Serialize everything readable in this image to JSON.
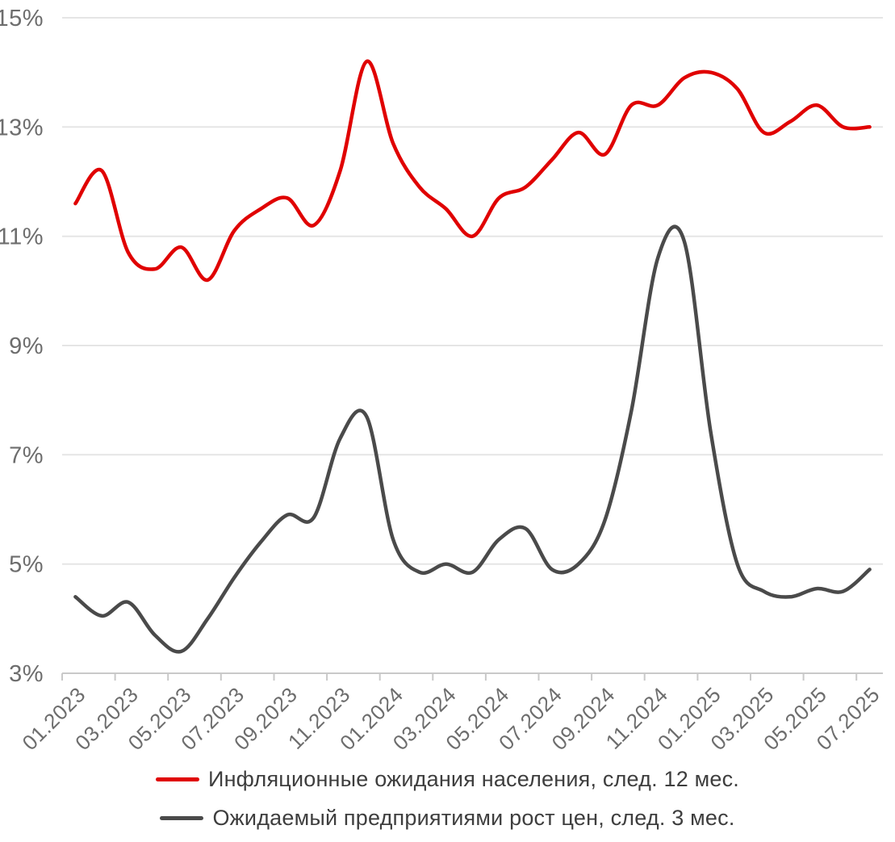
{
  "chart_data": {
    "type": "line",
    "smooth": true,
    "grid": true,
    "legend_position": "bottom",
    "title": "",
    "xlabel": "",
    "ylabel": "",
    "ylim": [
      3,
      15
    ],
    "y_ticks": [
      3,
      5,
      7,
      9,
      11,
      13,
      15
    ],
    "y_tick_labels": [
      "3%",
      "5%",
      "7%",
      "9%",
      "11%",
      "13%",
      "15%"
    ],
    "x_tick_every": 2,
    "x_tick_labels": [
      "01.2023",
      "03.2023",
      "05.2023",
      "07.2023",
      "09.2023",
      "11.2023",
      "01.2024",
      "03.2024",
      "05.2024",
      "07.2024",
      "09.2024",
      "11.2024",
      "01.2025",
      "03.2025",
      "05.2025",
      "07.2025"
    ],
    "categories": [
      "01.2023",
      "02.2023",
      "03.2023",
      "04.2023",
      "05.2023",
      "06.2023",
      "07.2023",
      "08.2023",
      "09.2023",
      "10.2023",
      "11.2023",
      "12.2023",
      "01.2024",
      "02.2024",
      "03.2024",
      "04.2024",
      "05.2024",
      "06.2024",
      "07.2024",
      "08.2024",
      "09.2024",
      "10.2024",
      "11.2024",
      "12.2024",
      "01.2025",
      "02.2025",
      "03.2025",
      "04.2025",
      "05.2025",
      "06.2025",
      "07.2025"
    ],
    "series": [
      {
        "name": "Инфляционные ожидания населения, след. 12 мес.",
        "color": "#e00000",
        "values": [
          11.6,
          12.2,
          10.7,
          10.4,
          10.8,
          10.2,
          11.1,
          11.5,
          11.7,
          11.2,
          12.2,
          14.2,
          12.7,
          11.9,
          11.5,
          11.0,
          11.7,
          11.9,
          12.4,
          12.9,
          12.5,
          13.4,
          13.4,
          13.9,
          14.0,
          13.7,
          12.9,
          13.1,
          13.4,
          13.0,
          13.0
        ]
      },
      {
        "name": "Ожидаемый предприятиями рост цен, след. 3 мес.",
        "color": "#4a4a4a",
        "values": [
          4.4,
          4.05,
          4.3,
          3.7,
          3.4,
          4.0,
          4.75,
          5.4,
          5.9,
          5.85,
          7.3,
          7.7,
          5.45,
          4.85,
          5.0,
          4.85,
          5.45,
          5.65,
          4.9,
          5.0,
          5.8,
          7.8,
          10.6,
          10.9,
          7.4,
          5.0,
          4.5,
          4.4,
          4.55,
          4.5,
          4.9
        ]
      }
    ],
    "style": {
      "grid_color": "#e5e5e5",
      "axis_color": "#c9c9c9",
      "tick_label_color": "#6d6d6d",
      "line_width": 4.5,
      "background": "#ffffff"
    }
  }
}
